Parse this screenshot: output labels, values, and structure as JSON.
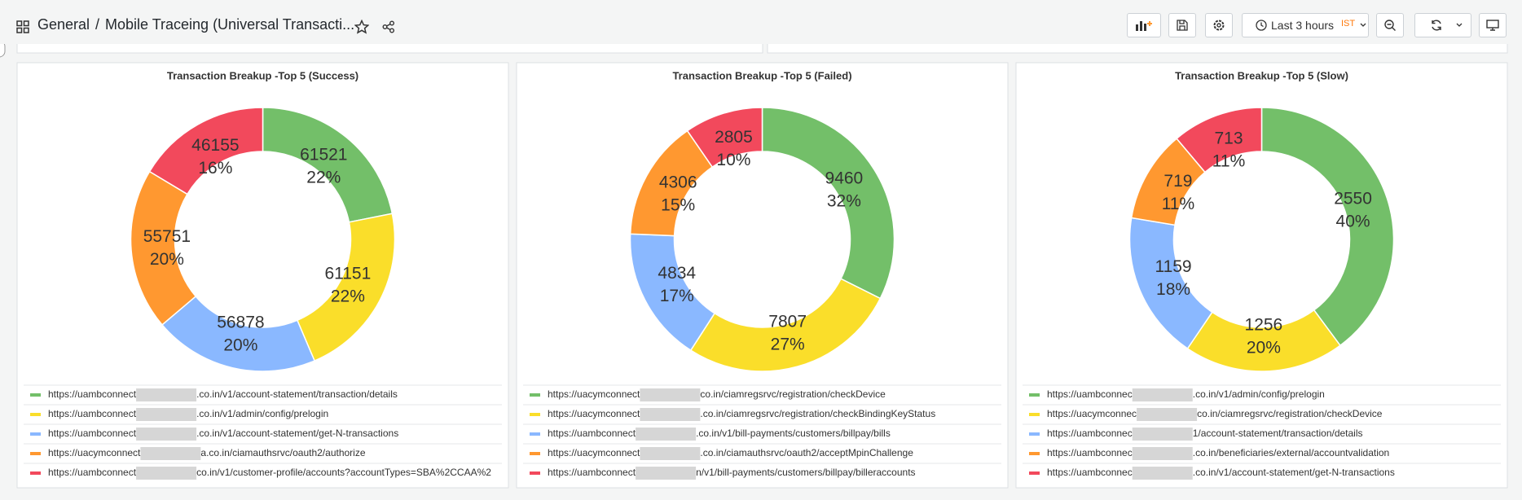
{
  "header": {
    "home": "General",
    "separator": "/",
    "dashboard": "Mobile Traceing (Universal Transacti...",
    "time_range": "Last 3 hours",
    "timezone": "IST"
  },
  "chart_data": [
    {
      "type": "pie",
      "title": "Transaction Breakup -Top 5 (Success)",
      "categories": [
        [
          "https://uambconnect",
          ".co.in/v1/account-statement/transaction/details"
        ],
        [
          "https://uambconnect",
          ".co.in/v1/admin/config/prelogin"
        ],
        [
          "https://uambconnect",
          ".co.in/v1/account-statement/get-N-transactions"
        ],
        [
          "https://uacymconnect",
          "a.co.in/ciamauthsrvc/oauth2/authorize"
        ],
        [
          "https://uambconnect",
          "co.in/v1/customer-profile/accounts?accountTypes=SBA%2CCAA%2"
        ]
      ],
      "values": [
        61521,
        61151,
        56878,
        55751,
        46155
      ],
      "percent_labels": [
        "22%",
        "22%",
        "20%",
        "20%",
        "16%"
      ],
      "colors": [
        "#73bf69",
        "#fade2a",
        "#8ab8ff",
        "#ff9830",
        "#f2495c"
      ]
    },
    {
      "type": "pie",
      "title": "Transaction Breakup -Top 5 (Failed)",
      "categories": [
        [
          "https://uacymconnect",
          "co.in/ciamregsrvc/registration/checkDevice"
        ],
        [
          "https://uacymconnect",
          ".co.in/ciamregsrvc/registration/checkBindingKeyStatus"
        ],
        [
          "https://uambconnect",
          ".co.in/v1/bill-payments/customers/billpay/bills"
        ],
        [
          "https://uacymconnect",
          ".co.in/ciamauthsrvc/oauth2/acceptMpinChallenge"
        ],
        [
          "https://uambconnect",
          "n/v1/bill-payments/customers/billpay/billeraccounts"
        ]
      ],
      "values": [
        9460,
        7807,
        4834,
        4306,
        2805
      ],
      "percent_labels": [
        "32%",
        "27%",
        "17%",
        "15%",
        "10%"
      ],
      "colors": [
        "#73bf69",
        "#fade2a",
        "#8ab8ff",
        "#ff9830",
        "#f2495c"
      ]
    },
    {
      "type": "pie",
      "title": "Transaction Breakup -Top 5 (Slow)",
      "categories": [
        [
          "https://uambconnec",
          ".co.in/v1/admin/config/prelogin"
        ],
        [
          "https://uacymconnec",
          "co.in/ciamregsrvc/registration/checkDevice"
        ],
        [
          "https://uambconnec",
          "1/account-statement/transaction/details"
        ],
        [
          "https://uambconnec",
          ".co.in/beneficiaries/external/accountvalidation"
        ],
        [
          "https://uambconnec",
          ".co.in/v1/account-statement/get-N-transactions"
        ]
      ],
      "values": [
        2550,
        1256,
        1159,
        719,
        713
      ],
      "percent_labels": [
        "40%",
        "20%",
        "18%",
        "11%",
        "11%"
      ],
      "colors": [
        "#73bf69",
        "#fade2a",
        "#8ab8ff",
        "#ff9830",
        "#f2495c"
      ]
    }
  ]
}
